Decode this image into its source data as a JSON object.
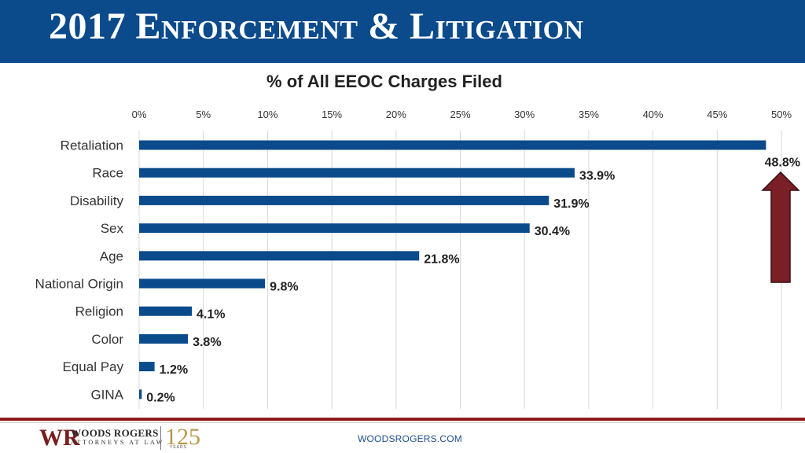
{
  "header": {
    "title": "2017 Enforcement & Litigation"
  },
  "colors": {
    "header_bg": "#0b4a8b",
    "bar": "#0b4a8b",
    "arrow": "#7a1f25",
    "footer_rule": "#8e1b1b"
  },
  "chart_data": {
    "type": "bar",
    "orientation": "horizontal",
    "title": "% of All EEOC Charges Filed",
    "categories": [
      "Retaliation",
      "Race",
      "Disability",
      "Sex",
      "Age",
      "National Origin",
      "Religion",
      "Color",
      "Equal Pay",
      "GINA"
    ],
    "values": [
      48.8,
      33.9,
      31.9,
      30.4,
      21.8,
      9.8,
      4.1,
      3.8,
      1.2,
      0.2
    ],
    "value_labels": [
      "48.8%",
      "33.9%",
      "31.9%",
      "30.4%",
      "21.8%",
      "9.8%",
      "4.1%",
      "3.8%",
      "1.2%",
      "0.2%"
    ],
    "xlim": [
      0,
      50
    ],
    "x_ticks": [
      0,
      5,
      10,
      15,
      20,
      25,
      30,
      35,
      40,
      45,
      50
    ],
    "x_tick_labels": [
      "0%",
      "5%",
      "10%",
      "15%",
      "20%",
      "25%",
      "30%",
      "35%",
      "40%",
      "45%",
      "50%"
    ],
    "x_axis_position": "top",
    "grid": true,
    "annotation": {
      "type": "up-arrow",
      "target": "Retaliation",
      "icon": "up-arrow-icon"
    }
  },
  "footer": {
    "url": "WOODSROGERS.COM",
    "logo_mark": "WR",
    "logo_name": "WOODS ROGERS",
    "logo_tagline": "ATTORNEYS AT LAW",
    "logo_anniversary": "125",
    "logo_years": "YEARS"
  }
}
